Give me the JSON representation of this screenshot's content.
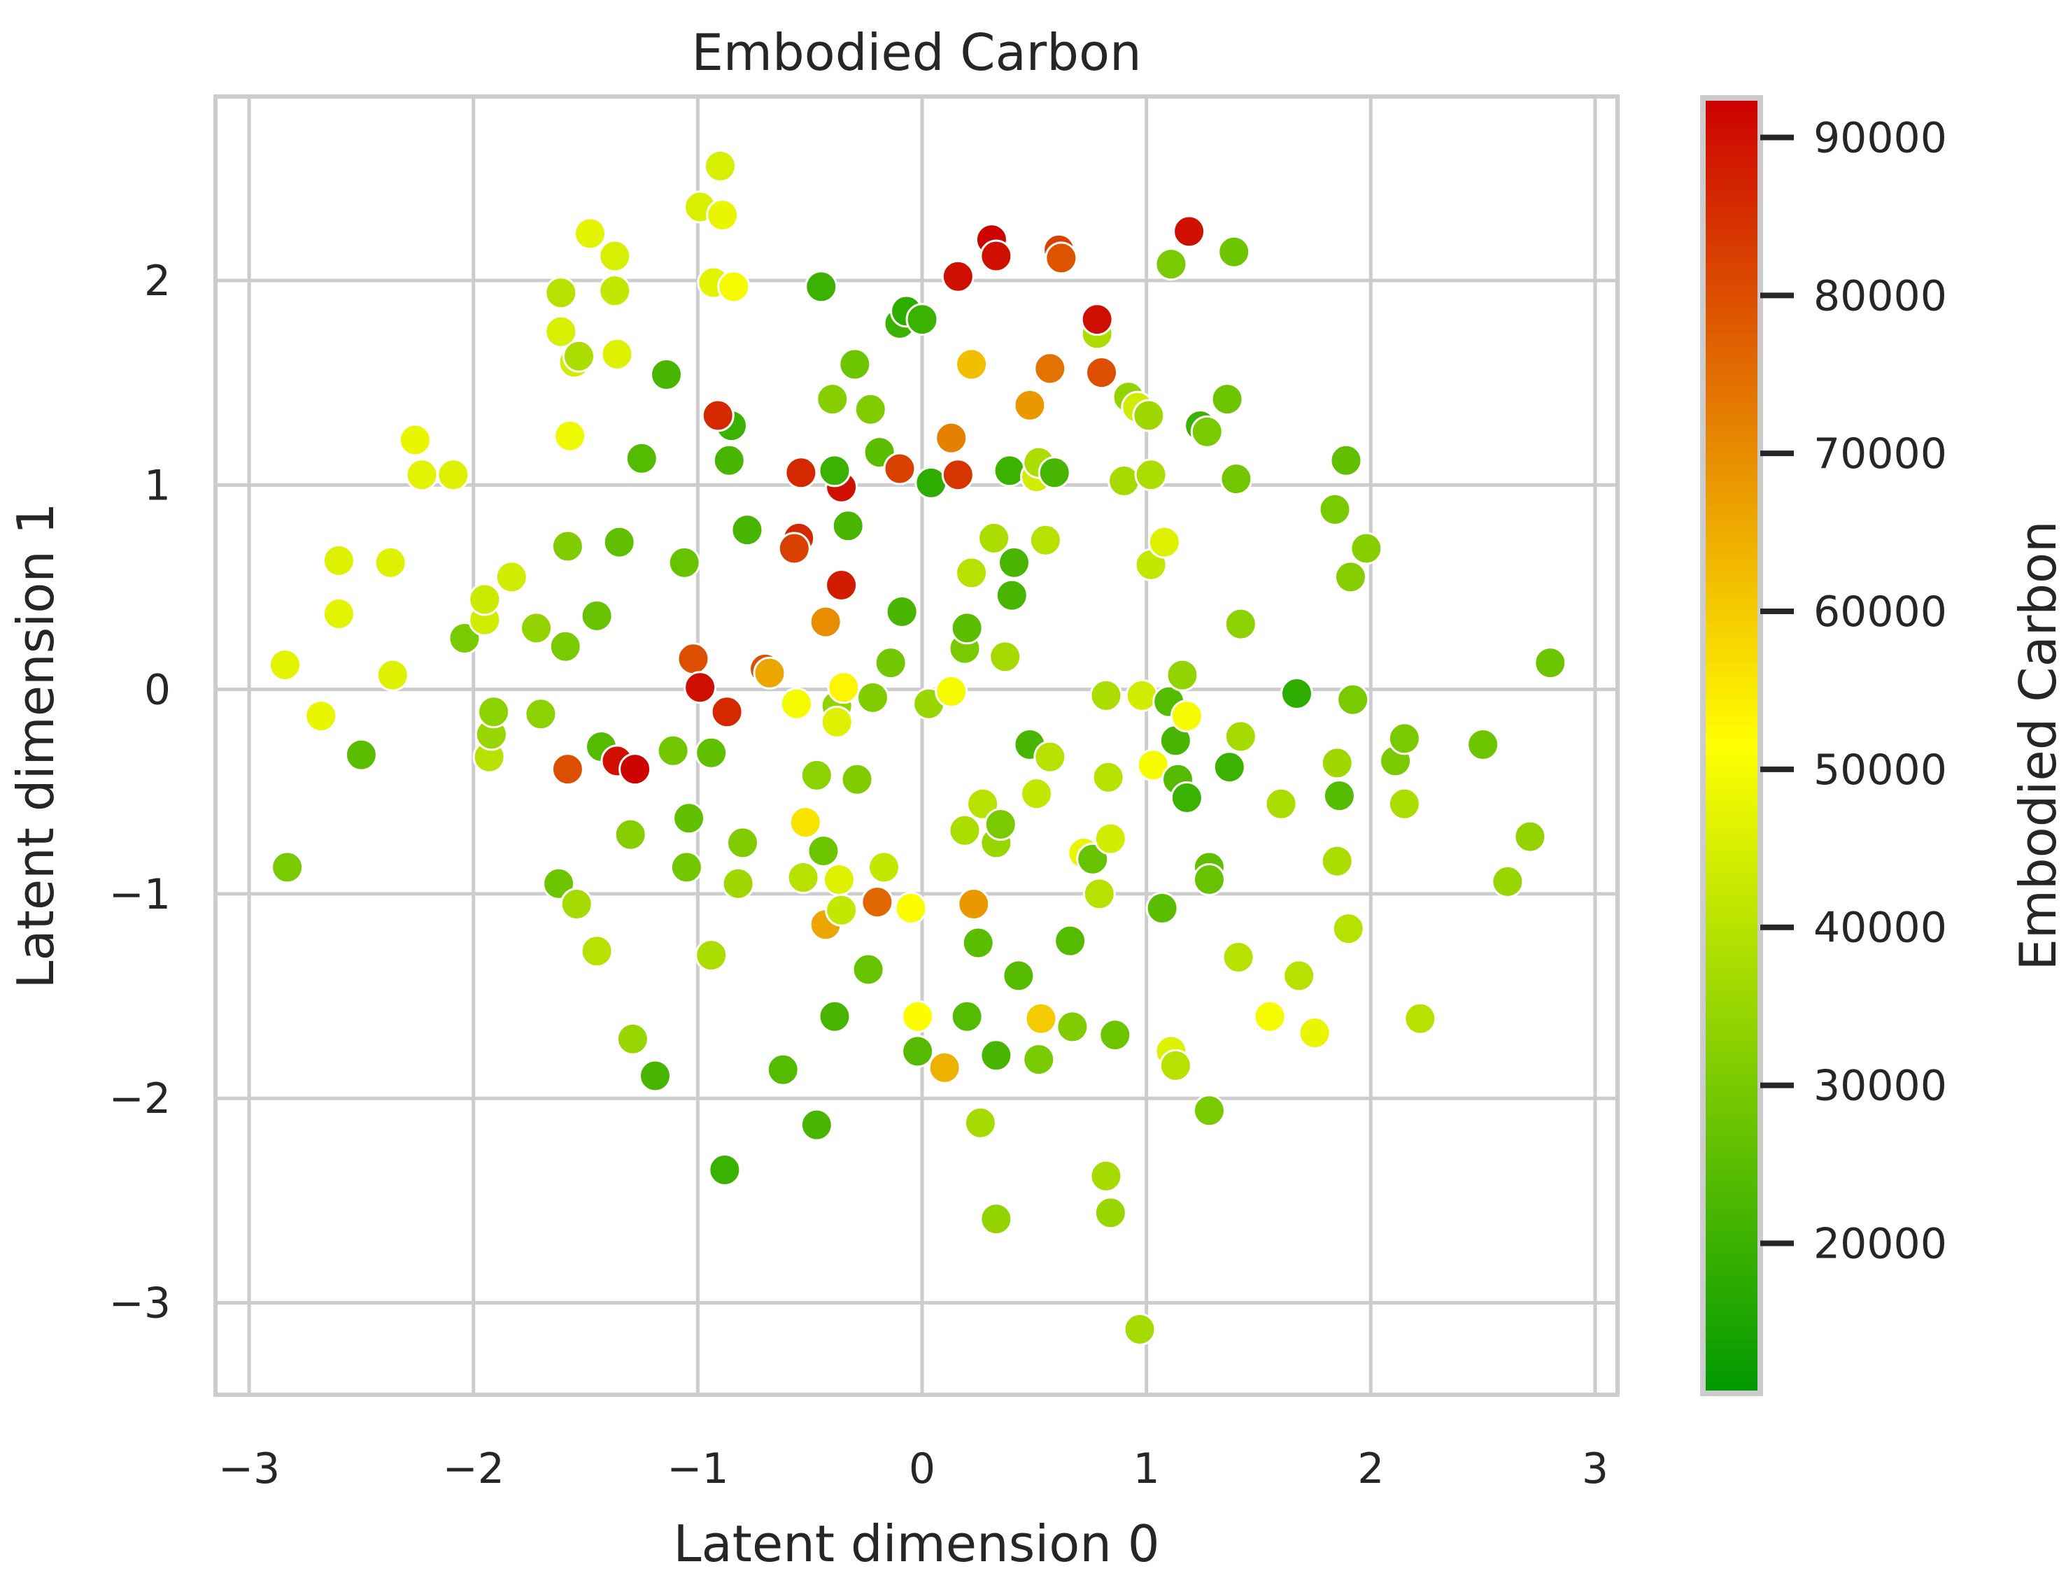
{
  "chart_data": {
    "type": "scatter",
    "title": "Embodied Carbon",
    "xlabel": "Latent dimension 0",
    "ylabel": "Latent dimension 1",
    "xlim": [
      -3.15,
      3.1
    ],
    "ylim": [
      -3.45,
      2.9
    ],
    "xticks": [
      -3,
      -2,
      -1,
      0,
      1,
      2,
      3
    ],
    "yticks": [
      -3,
      -2,
      -1,
      0,
      1,
      2
    ],
    "xtick_labels": [
      "−3",
      "−2",
      "−1",
      "0",
      "1",
      "2",
      "3"
    ],
    "ytick_labels": [
      "−3",
      "−2",
      "−1",
      "0",
      "1",
      "2"
    ],
    "grid": true,
    "colorbar": {
      "label": "Embodied Carbon",
      "range": [
        10500,
        92500
      ],
      "ticks": [
        20000,
        30000,
        40000,
        50000,
        60000,
        70000,
        80000,
        90000
      ],
      "tick_labels": [
        "20000",
        "30000",
        "40000",
        "50000",
        "60000",
        "70000",
        "80000",
        "90000"
      ],
      "colormap": [
        {
          "stop": 0.0,
          "color": "#009900"
        },
        {
          "stop": 0.5,
          "color": "#ffff00"
        },
        {
          "stop": 1.0,
          "color": "#cc0000"
        }
      ]
    },
    "points": [
      {
        "x": -2.84,
        "y": 0.12,
        "c": 47000
      },
      {
        "x": -2.83,
        "y": -0.87,
        "c": 30000
      },
      {
        "x": -2.68,
        "y": -0.13,
        "c": 48000
      },
      {
        "x": -2.6,
        "y": 0.63,
        "c": 46000
      },
      {
        "x": -2.6,
        "y": 0.37,
        "c": 47000
      },
      {
        "x": -2.5,
        "y": -0.32,
        "c": 25000
      },
      {
        "x": -2.37,
        "y": 0.62,
        "c": 46000
      },
      {
        "x": -2.36,
        "y": 0.07,
        "c": 46000
      },
      {
        "x": -2.26,
        "y": 1.22,
        "c": 48000
      },
      {
        "x": -2.23,
        "y": 1.05,
        "c": 47000
      },
      {
        "x": -2.09,
        "y": 1.05,
        "c": 46000
      },
      {
        "x": -2.04,
        "y": 0.25,
        "c": 30000
      },
      {
        "x": -1.95,
        "y": 0.34,
        "c": 44000
      },
      {
        "x": -1.95,
        "y": 0.44,
        "c": 43000
      },
      {
        "x": -1.93,
        "y": -0.33,
        "c": 40000
      },
      {
        "x": -1.92,
        "y": -0.22,
        "c": 35000
      },
      {
        "x": -1.91,
        "y": -0.11,
        "c": 33000
      },
      {
        "x": -1.83,
        "y": 0.55,
        "c": 44000
      },
      {
        "x": -1.72,
        "y": 0.3,
        "c": 34000
      },
      {
        "x": -1.7,
        "y": -0.12,
        "c": 33000
      },
      {
        "x": -1.62,
        "y": -0.95,
        "c": 28000
      },
      {
        "x": -1.61,
        "y": 1.94,
        "c": 40000
      },
      {
        "x": -1.61,
        "y": 1.75,
        "c": 45000
      },
      {
        "x": -1.59,
        "y": 0.21,
        "c": 30000
      },
      {
        "x": -1.58,
        "y": 0.7,
        "c": 31000
      },
      {
        "x": -1.57,
        "y": 1.24,
        "c": 49000
      },
      {
        "x": -1.55,
        "y": 1.6,
        "c": 44000
      },
      {
        "x": -1.54,
        "y": -1.05,
        "c": 37000
      },
      {
        "x": -1.53,
        "y": 1.63,
        "c": 38000
      },
      {
        "x": -1.48,
        "y": 2.23,
        "c": 47000
      },
      {
        "x": -1.45,
        "y": 0.36,
        "c": 27000
      },
      {
        "x": -1.45,
        "y": -1.28,
        "c": 40000
      },
      {
        "x": -1.43,
        "y": -0.28,
        "c": 24000
      },
      {
        "x": -1.37,
        "y": 2.12,
        "c": 45000
      },
      {
        "x": -1.37,
        "y": 1.95,
        "c": 42000
      },
      {
        "x": -1.36,
        "y": 1.64,
        "c": 46000
      },
      {
        "x": -1.35,
        "y": 0.72,
        "c": 26000
      },
      {
        "x": -1.3,
        "y": -0.71,
        "c": 32000
      },
      {
        "x": -1.29,
        "y": -1.71,
        "c": 35000
      },
      {
        "x": -1.25,
        "y": 1.13,
        "c": 24000
      },
      {
        "x": -1.19,
        "y": -1.89,
        "c": 22000
      },
      {
        "x": -1.14,
        "y": 1.54,
        "c": 22000
      },
      {
        "x": -1.11,
        "y": -0.3,
        "c": 29000
      },
      {
        "x": -1.06,
        "y": 0.62,
        "c": 27000
      },
      {
        "x": -1.04,
        "y": -0.63,
        "c": 26000
      },
      {
        "x": -1.05,
        "y": -0.87,
        "c": 29000
      },
      {
        "x": -0.99,
        "y": 2.36,
        "c": 45000
      },
      {
        "x": -0.94,
        "y": -1.3,
        "c": 38000
      },
      {
        "x": -0.93,
        "y": 1.99,
        "c": 47000
      },
      {
        "x": -0.94,
        "y": -0.31,
        "c": 26000
      },
      {
        "x": -0.9,
        "y": 2.56,
        "c": 45000
      },
      {
        "x": -0.89,
        "y": 2.32,
        "c": 48000
      },
      {
        "x": -0.88,
        "y": -2.35,
        "c": 20000
      },
      {
        "x": -0.86,
        "y": 1.12,
        "c": 22000
      },
      {
        "x": -0.85,
        "y": 1.29,
        "c": 20000
      },
      {
        "x": -0.84,
        "y": 1.97,
        "c": 50000
      },
      {
        "x": -0.82,
        "y": -0.95,
        "c": 36000
      },
      {
        "x": -0.8,
        "y": -0.75,
        "c": 31000
      },
      {
        "x": -0.78,
        "y": 0.78,
        "c": 22000
      },
      {
        "x": -0.62,
        "y": -1.86,
        "c": 24000
      },
      {
        "x": -0.56,
        "y": -0.07,
        "c": 50000
      },
      {
        "x": -0.53,
        "y": -0.92,
        "c": 40000
      },
      {
        "x": -0.47,
        "y": -2.13,
        "c": 22000
      },
      {
        "x": -0.47,
        "y": -0.42,
        "c": 33000
      },
      {
        "x": -0.45,
        "y": 1.97,
        "c": 20000
      },
      {
        "x": -0.43,
        "y": -1.15,
        "c": 66000
      },
      {
        "x": -0.44,
        "y": -0.79,
        "c": 28000
      },
      {
        "x": -0.4,
        "y": 1.42,
        "c": 32000
      },
      {
        "x": -0.39,
        "y": -1.6,
        "c": 22000
      },
      {
        "x": -0.38,
        "y": -0.08,
        "c": 34000
      },
      {
        "x": -0.38,
        "y": -0.16,
        "c": 46000
      },
      {
        "x": -0.37,
        "y": -0.93,
        "c": 46000
      },
      {
        "x": -0.36,
        "y": -1.08,
        "c": 42000
      },
      {
        "x": -0.35,
        "y": 0.01,
        "c": 53000
      },
      {
        "x": -0.33,
        "y": 0.8,
        "c": 22000
      },
      {
        "x": -0.3,
        "y": 1.59,
        "c": 28000
      },
      {
        "x": -0.29,
        "y": -0.44,
        "c": 31000
      },
      {
        "x": -0.24,
        "y": -1.37,
        "c": 27000
      },
      {
        "x": -0.23,
        "y": 1.37,
        "c": 31000
      },
      {
        "x": -0.22,
        "y": -0.04,
        "c": 31000
      },
      {
        "x": -0.19,
        "y": 1.16,
        "c": 25000
      },
      {
        "x": -0.17,
        "y": -0.87,
        "c": 42000
      },
      {
        "x": -0.14,
        "y": 0.13,
        "c": 29000
      },
      {
        "x": -0.1,
        "y": 1.79,
        "c": 20000
      },
      {
        "x": -0.09,
        "y": 0.38,
        "c": 22000
      },
      {
        "x": -0.07,
        "y": 1.85,
        "c": 18000
      },
      {
        "x": -0.05,
        "y": -1.07,
        "c": 52000
      },
      {
        "x": -0.02,
        "y": -1.6,
        "c": 51000
      },
      {
        "x": -0.02,
        "y": -1.77,
        "c": 24000
      },
      {
        "x": 0.0,
        "y": 1.81,
        "c": 20000
      },
      {
        "x": 0.03,
        "y": -0.07,
        "c": 35000
      },
      {
        "x": 0.04,
        "y": 1.01,
        "c": 18000
      },
      {
        "x": 0.1,
        "y": -1.85,
        "c": 64000
      },
      {
        "x": 0.13,
        "y": -0.01,
        "c": 50000
      },
      {
        "x": 0.19,
        "y": 0.2,
        "c": 30000
      },
      {
        "x": 0.19,
        "y": -0.69,
        "c": 38000
      },
      {
        "x": 0.2,
        "y": 0.3,
        "c": 25000
      },
      {
        "x": 0.2,
        "y": -1.6,
        "c": 24000
      },
      {
        "x": 0.22,
        "y": 1.59,
        "c": 62000
      },
      {
        "x": 0.22,
        "y": 0.57,
        "c": 40000
      },
      {
        "x": 0.23,
        "y": -1.05,
        "c": 68000
      },
      {
        "x": 0.25,
        "y": -1.24,
        "c": 25000
      },
      {
        "x": 0.26,
        "y": -2.12,
        "c": 37000
      },
      {
        "x": 0.27,
        "y": -0.56,
        "c": 40000
      },
      {
        "x": 0.32,
        "y": 0.74,
        "c": 38000
      },
      {
        "x": 0.33,
        "y": -1.79,
        "c": 22000
      },
      {
        "x": 0.33,
        "y": -2.59,
        "c": 34000
      },
      {
        "x": 0.33,
        "y": -0.75,
        "c": 35000
      },
      {
        "x": 0.35,
        "y": -0.66,
        "c": 30000
      },
      {
        "x": 0.37,
        "y": 0.16,
        "c": 37000
      },
      {
        "x": 0.39,
        "y": 1.07,
        "c": 20000
      },
      {
        "x": 0.4,
        "y": 0.46,
        "c": 22000
      },
      {
        "x": 0.41,
        "y": 0.62,
        "c": 22000
      },
      {
        "x": 0.43,
        "y": -1.4,
        "c": 24000
      },
      {
        "x": 0.48,
        "y": -0.27,
        "c": 22000
      },
      {
        "x": 0.48,
        "y": 1.39,
        "c": 68000
      },
      {
        "x": 0.51,
        "y": 1.04,
        "c": 44000
      },
      {
        "x": 0.51,
        "y": -0.51,
        "c": 42000
      },
      {
        "x": 0.52,
        "y": -1.81,
        "c": 30000
      },
      {
        "x": 0.52,
        "y": 1.11,
        "c": 38000
      },
      {
        "x": 0.53,
        "y": -1.61,
        "c": 60000
      },
      {
        "x": 0.55,
        "y": 0.73,
        "c": 40000
      },
      {
        "x": 0.57,
        "y": 1.57,
        "c": 74000
      },
      {
        "x": 0.57,
        "y": -0.33,
        "c": 40000
      },
      {
        "x": 0.59,
        "y": 1.06,
        "c": 22000
      },
      {
        "x": 0.61,
        "y": 2.15,
        "c": 82000
      },
      {
        "x": 0.62,
        "y": 2.11,
        "c": 79000
      },
      {
        "x": 0.66,
        "y": -1.23,
        "c": 24000
      },
      {
        "x": 0.67,
        "y": -1.65,
        "c": 31000
      },
      {
        "x": 0.72,
        "y": -0.8,
        "c": 48000
      },
      {
        "x": 0.76,
        "y": -0.83,
        "c": 27000
      },
      {
        "x": 0.78,
        "y": 1.74,
        "c": 38000
      },
      {
        "x": 0.78,
        "y": 1.81,
        "c": 90000
      },
      {
        "x": 0.79,
        "y": -1.0,
        "c": 40000
      },
      {
        "x": 0.8,
        "y": 1.55,
        "c": 80000
      },
      {
        "x": 0.82,
        "y": -2.38,
        "c": 37000
      },
      {
        "x": 0.82,
        "y": -0.03,
        "c": 38000
      },
      {
        "x": 0.83,
        "y": -0.43,
        "c": 40000
      },
      {
        "x": 0.84,
        "y": -0.73,
        "c": 44000
      },
      {
        "x": 0.84,
        "y": -2.56,
        "c": 35000
      },
      {
        "x": 0.86,
        "y": -1.69,
        "c": 28000
      },
      {
        "x": 0.9,
        "y": 1.02,
        "c": 37000
      },
      {
        "x": 0.92,
        "y": 1.43,
        "c": 34000
      },
      {
        "x": 0.96,
        "y": 1.38,
        "c": 44000
      },
      {
        "x": 0.97,
        "y": -3.13,
        "c": 37000
      },
      {
        "x": 0.98,
        "y": -0.03,
        "c": 44000
      },
      {
        "x": 1.01,
        "y": 1.34,
        "c": 36000
      },
      {
        "x": 1.02,
        "y": 1.05,
        "c": 38000
      },
      {
        "x": 1.02,
        "y": 0.61,
        "c": 42000
      },
      {
        "x": 1.03,
        "y": -0.37,
        "c": 50000
      },
      {
        "x": 1.07,
        "y": -1.07,
        "c": 25000
      },
      {
        "x": 1.08,
        "y": 0.72,
        "c": 46000
      },
      {
        "x": 1.1,
        "y": -0.06,
        "c": 24000
      },
      {
        "x": 1.11,
        "y": 2.08,
        "c": 30000
      },
      {
        "x": 1.11,
        "y": -1.77,
        "c": 46000
      },
      {
        "x": 1.13,
        "y": -1.84,
        "c": 40000
      },
      {
        "x": 1.13,
        "y": -0.25,
        "c": 22000
      },
      {
        "x": 1.14,
        "y": -0.44,
        "c": 24000
      },
      {
        "x": 1.16,
        "y": 0.07,
        "c": 34000
      },
      {
        "x": 1.18,
        "y": -0.13,
        "c": 50000
      },
      {
        "x": 1.18,
        "y": -0.53,
        "c": 20000
      },
      {
        "x": 1.19,
        "y": 2.24,
        "c": 90000
      },
      {
        "x": 1.24,
        "y": 1.29,
        "c": 20000
      },
      {
        "x": 1.27,
        "y": 1.26,
        "c": 30000
      },
      {
        "x": 1.28,
        "y": -0.87,
        "c": 26000
      },
      {
        "x": 1.28,
        "y": -0.93,
        "c": 27000
      },
      {
        "x": 1.28,
        "y": -2.06,
        "c": 30000
      },
      {
        "x": 1.36,
        "y": 1.42,
        "c": 28000
      },
      {
        "x": 1.37,
        "y": -0.38,
        "c": 20000
      },
      {
        "x": 1.39,
        "y": 2.14,
        "c": 28000
      },
      {
        "x": 1.4,
        "y": 1.03,
        "c": 29000
      },
      {
        "x": 1.41,
        "y": -1.31,
        "c": 40000
      },
      {
        "x": 1.42,
        "y": 0.32,
        "c": 33000
      },
      {
        "x": 1.42,
        "y": -0.23,
        "c": 37000
      },
      {
        "x": 1.55,
        "y": -1.6,
        "c": 50000
      },
      {
        "x": 1.6,
        "y": -0.56,
        "c": 38000
      },
      {
        "x": 1.67,
        "y": -0.02,
        "c": 18000
      },
      {
        "x": 1.68,
        "y": -1.4,
        "c": 40000
      },
      {
        "x": 1.75,
        "y": -1.68,
        "c": 48000
      },
      {
        "x": 1.84,
        "y": 0.88,
        "c": 30000
      },
      {
        "x": 1.85,
        "y": -0.36,
        "c": 36000
      },
      {
        "x": 1.85,
        "y": -0.84,
        "c": 38000
      },
      {
        "x": 1.86,
        "y": -0.52,
        "c": 24000
      },
      {
        "x": 1.89,
        "y": 1.12,
        "c": 26000
      },
      {
        "x": 1.9,
        "y": -1.17,
        "c": 40000
      },
      {
        "x": 1.91,
        "y": 0.55,
        "c": 32000
      },
      {
        "x": 1.92,
        "y": -0.05,
        "c": 30000
      },
      {
        "x": 1.98,
        "y": 0.69,
        "c": 32000
      },
      {
        "x": 2.11,
        "y": -0.35,
        "c": 30000
      },
      {
        "x": 2.15,
        "y": -0.24,
        "c": 30000
      },
      {
        "x": 2.15,
        "y": -0.56,
        "c": 38000
      },
      {
        "x": 2.22,
        "y": -1.61,
        "c": 40000
      },
      {
        "x": 2.5,
        "y": -0.27,
        "c": 28000
      },
      {
        "x": 2.61,
        "y": -0.94,
        "c": 35000
      },
      {
        "x": 2.71,
        "y": -0.72,
        "c": 34000
      },
      {
        "x": 2.8,
        "y": 0.13,
        "c": 28000
      },
      {
        "x": -0.91,
        "y": 1.34,
        "c": 86000
      },
      {
        "x": -0.54,
        "y": 1.06,
        "c": 86000
      },
      {
        "x": -0.36,
        "y": 0.99,
        "c": 90000
      },
      {
        "x": -0.1,
        "y": 1.08,
        "c": 82000
      },
      {
        "x": 0.13,
        "y": 1.23,
        "c": 72000
      },
      {
        "x": 0.16,
        "y": 2.02,
        "c": 90000
      },
      {
        "x": 0.16,
        "y": 1.05,
        "c": 84000
      },
      {
        "x": 0.31,
        "y": 2.2,
        "c": 92000
      },
      {
        "x": 0.33,
        "y": 2.12,
        "c": 90000
      },
      {
        "x": -0.55,
        "y": 0.74,
        "c": 86000
      },
      {
        "x": -0.57,
        "y": 0.69,
        "c": 82000
      },
      {
        "x": -0.36,
        "y": 0.51,
        "c": 88000
      },
      {
        "x": -0.43,
        "y": 0.33,
        "c": 70000
      },
      {
        "x": -1.02,
        "y": 0.15,
        "c": 80000
      },
      {
        "x": -0.99,
        "y": 0.01,
        "c": 90000
      },
      {
        "x": -0.87,
        "y": -0.11,
        "c": 86000
      },
      {
        "x": -0.7,
        "y": 0.1,
        "c": 80000
      },
      {
        "x": -0.52,
        "y": -0.65,
        "c": 56000
      },
      {
        "x": -1.36,
        "y": -0.35,
        "c": 90000
      },
      {
        "x": -1.28,
        "y": -0.39,
        "c": 92000
      },
      {
        "x": -1.58,
        "y": -0.39,
        "c": 80000
      },
      {
        "x": -0.2,
        "y": -1.04,
        "c": 76000
      },
      {
        "x": -0.39,
        "y": 1.07,
        "c": 20000
      },
      {
        "x": -0.68,
        "y": 0.08,
        "c": 66000
      }
    ]
  }
}
